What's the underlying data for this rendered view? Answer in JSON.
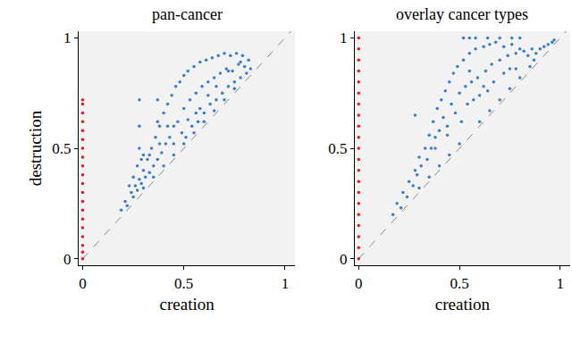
{
  "chart_data": [
    {
      "type": "scatter",
      "title": "pan-cancer",
      "x_label": "creation",
      "y_label": "destruction",
      "xlim": [
        -0.02,
        1.05
      ],
      "ylim": [
        -0.03,
        1.03
      ],
      "xticks": [
        0,
        0.5,
        1
      ],
      "yticks": [
        0,
        0.5,
        1
      ],
      "grid": false,
      "series": [
        {
          "type": "line",
          "line_style": "dashed",
          "color": "#888888",
          "x": [
            0,
            1.03
          ],
          "values": [
            0,
            1.03
          ]
        },
        {
          "type": "scatter",
          "marker": "circle",
          "color": "#3b7dc4",
          "x": [
            0.19,
            0.21,
            0.22,
            0.24,
            0.25,
            0.26,
            0.27,
            0.28,
            0.28,
            0.28,
            0.28,
            0.29,
            0.3,
            0.31,
            0.32,
            0.33,
            0.34,
            0.35,
            0.36,
            0.37,
            0.37,
            0.37,
            0.38,
            0.39,
            0.4,
            0.41,
            0.42,
            0.43,
            0.44,
            0.45,
            0.46,
            0.47,
            0.48,
            0.49,
            0.5,
            0.5,
            0.51,
            0.52,
            0.53,
            0.54,
            0.55,
            0.56,
            0.57,
            0.58,
            0.59,
            0.6,
            0.61,
            0.62,
            0.63,
            0.64,
            0.65,
            0.66,
            0.67,
            0.68,
            0.69,
            0.7,
            0.71,
            0.72,
            0.73,
            0.74,
            0.75,
            0.76,
            0.77,
            0.78,
            0.79,
            0.8,
            0.81,
            0.82,
            0.83,
            0.35,
            0.4,
            0.45,
            0.5,
            0.55,
            0.6,
            0.65,
            0.7,
            0.75,
            0.3,
            0.58,
            0.62,
            0.45,
            0.52,
            0.42,
            0.38,
            0.33,
            0.3,
            0.29,
            0.27,
            0.25,
            0.23,
            0.56,
            0.66,
            0.72,
            0.78
          ],
          "values": [
            0.22,
            0.26,
            0.24,
            0.3,
            0.28,
            0.33,
            0.31,
            0.36,
            0.5,
            0.6,
            0.72,
            0.34,
            0.4,
            0.37,
            0.45,
            0.39,
            0.5,
            0.42,
            0.55,
            0.45,
            0.62,
            0.72,
            0.6,
            0.48,
            0.66,
            0.52,
            0.7,
            0.55,
            0.74,
            0.6,
            0.78,
            0.62,
            0.8,
            0.57,
            0.83,
            0.68,
            0.55,
            0.85,
            0.72,
            0.6,
            0.87,
            0.75,
            0.62,
            0.89,
            0.78,
            0.66,
            0.9,
            0.8,
            0.7,
            0.91,
            0.82,
            0.72,
            0.92,
            0.84,
            0.75,
            0.93,
            0.86,
            0.78,
            0.92,
            0.85,
            0.8,
            0.93,
            0.88,
            0.82,
            0.92,
            0.87,
            0.84,
            0.9,
            0.86,
            0.37,
            0.42,
            0.47,
            0.52,
            0.57,
            0.62,
            0.67,
            0.72,
            0.77,
            0.32,
            0.68,
            0.74,
            0.52,
            0.63,
            0.6,
            0.52,
            0.47,
            0.47,
            0.45,
            0.42,
            0.37,
            0.33,
            0.66,
            0.78,
            0.85,
            0.89
          ]
        },
        {
          "type": "scatter",
          "marker": "circle",
          "color": "#e3191c",
          "x": [
            0,
            0,
            0,
            0,
            0,
            0,
            0,
            0,
            0,
            0,
            0,
            0,
            0,
            0,
            0,
            0,
            0,
            0,
            0,
            0
          ],
          "values": [
            0,
            0.03,
            0.06,
            0.1,
            0.14,
            0.18,
            0.22,
            0.26,
            0.3,
            0.34,
            0.38,
            0.42,
            0.46,
            0.5,
            0.54,
            0.58,
            0.62,
            0.66,
            0.7,
            0.72
          ]
        }
      ]
    },
    {
      "type": "scatter",
      "title": "overlay cancer types",
      "x_label": "creation",
      "xlim": [
        -0.02,
        1.05
      ],
      "ylim": [
        -0.03,
        1.03
      ],
      "xticks": [
        0,
        0.5,
        1
      ],
      "yticks": [
        0,
        0.5,
        1
      ],
      "grid": false,
      "series": [
        {
          "type": "line",
          "line_style": "dashed",
          "color": "#888888",
          "x": [
            0,
            1.03
          ],
          "values": [
            0,
            1.03
          ]
        },
        {
          "type": "scatter",
          "marker": "circle",
          "color": "#3b7dc4",
          "x": [
            0.17,
            0.19,
            0.21,
            0.22,
            0.24,
            0.25,
            0.27,
            0.28,
            0.28,
            0.29,
            0.3,
            0.31,
            0.33,
            0.34,
            0.35,
            0.36,
            0.37,
            0.38,
            0.39,
            0.4,
            0.41,
            0.42,
            0.43,
            0.44,
            0.45,
            0.46,
            0.47,
            0.48,
            0.49,
            0.5,
            0.51,
            0.52,
            0.53,
            0.54,
            0.55,
            0.55,
            0.55,
            0.56,
            0.57,
            0.58,
            0.59,
            0.6,
            0.62,
            0.63,
            0.64,
            0.65,
            0.66,
            0.67,
            0.68,
            0.7,
            0.72,
            0.74,
            0.75,
            0.76,
            0.78,
            0.8,
            0.82,
            0.84,
            0.86,
            0.88,
            0.9,
            0.92,
            0.94,
            0.96,
            0.97,
            0.52,
            0.58,
            0.64,
            0.7,
            0.76,
            0.8,
            0.35,
            0.4,
            0.45,
            0.5,
            0.6,
            0.65,
            0.7,
            0.75,
            0.8,
            0.85,
            0.3,
            0.38,
            0.44,
            0.62,
            0.72,
            0.78,
            0.87
          ],
          "values": [
            0.2,
            0.25,
            0.23,
            0.3,
            0.28,
            0.35,
            0.33,
            0.4,
            0.65,
            0.38,
            0.46,
            0.42,
            0.5,
            0.45,
            0.56,
            0.5,
            0.62,
            0.55,
            0.68,
            0.58,
            0.72,
            0.64,
            0.76,
            0.6,
            0.8,
            0.7,
            0.84,
            0.66,
            0.87,
            0.75,
            0.62,
            0.9,
            0.78,
            0.7,
            0.93,
            1.0,
            0.85,
            0.8,
            0.72,
            0.95,
            0.82,
            0.74,
            0.96,
            0.85,
            0.76,
            0.97,
            0.88,
            0.8,
            0.98,
            0.9,
            0.96,
            0.92,
            0.86,
            0.97,
            0.93,
            0.95,
            0.94,
            0.92,
            0.95,
            0.93,
            0.95,
            0.96,
            0.97,
            0.98,
            0.99,
            1.0,
            1.0,
            1.0,
            1.0,
            1.0,
            1.0,
            0.37,
            0.42,
            0.47,
            0.52,
            0.62,
            0.67,
            0.72,
            0.77,
            0.82,
            0.87,
            0.32,
            0.5,
            0.56,
            0.78,
            0.84,
            0.86,
            0.9
          ]
        },
        {
          "type": "scatter",
          "marker": "circle",
          "color": "#e3191c",
          "x": [
            0,
            0,
            0,
            0,
            0,
            0,
            0,
            0,
            0,
            0,
            0,
            0,
            0,
            0,
            0,
            0,
            0,
            0,
            0,
            0,
            0
          ],
          "values": [
            0,
            0.05,
            0.1,
            0.15,
            0.2,
            0.25,
            0.3,
            0.35,
            0.4,
            0.45,
            0.5,
            0.55,
            0.6,
            0.65,
            0.7,
            0.75,
            0.8,
            0.85,
            0.9,
            0.95,
            1.0
          ]
        }
      ]
    }
  ]
}
